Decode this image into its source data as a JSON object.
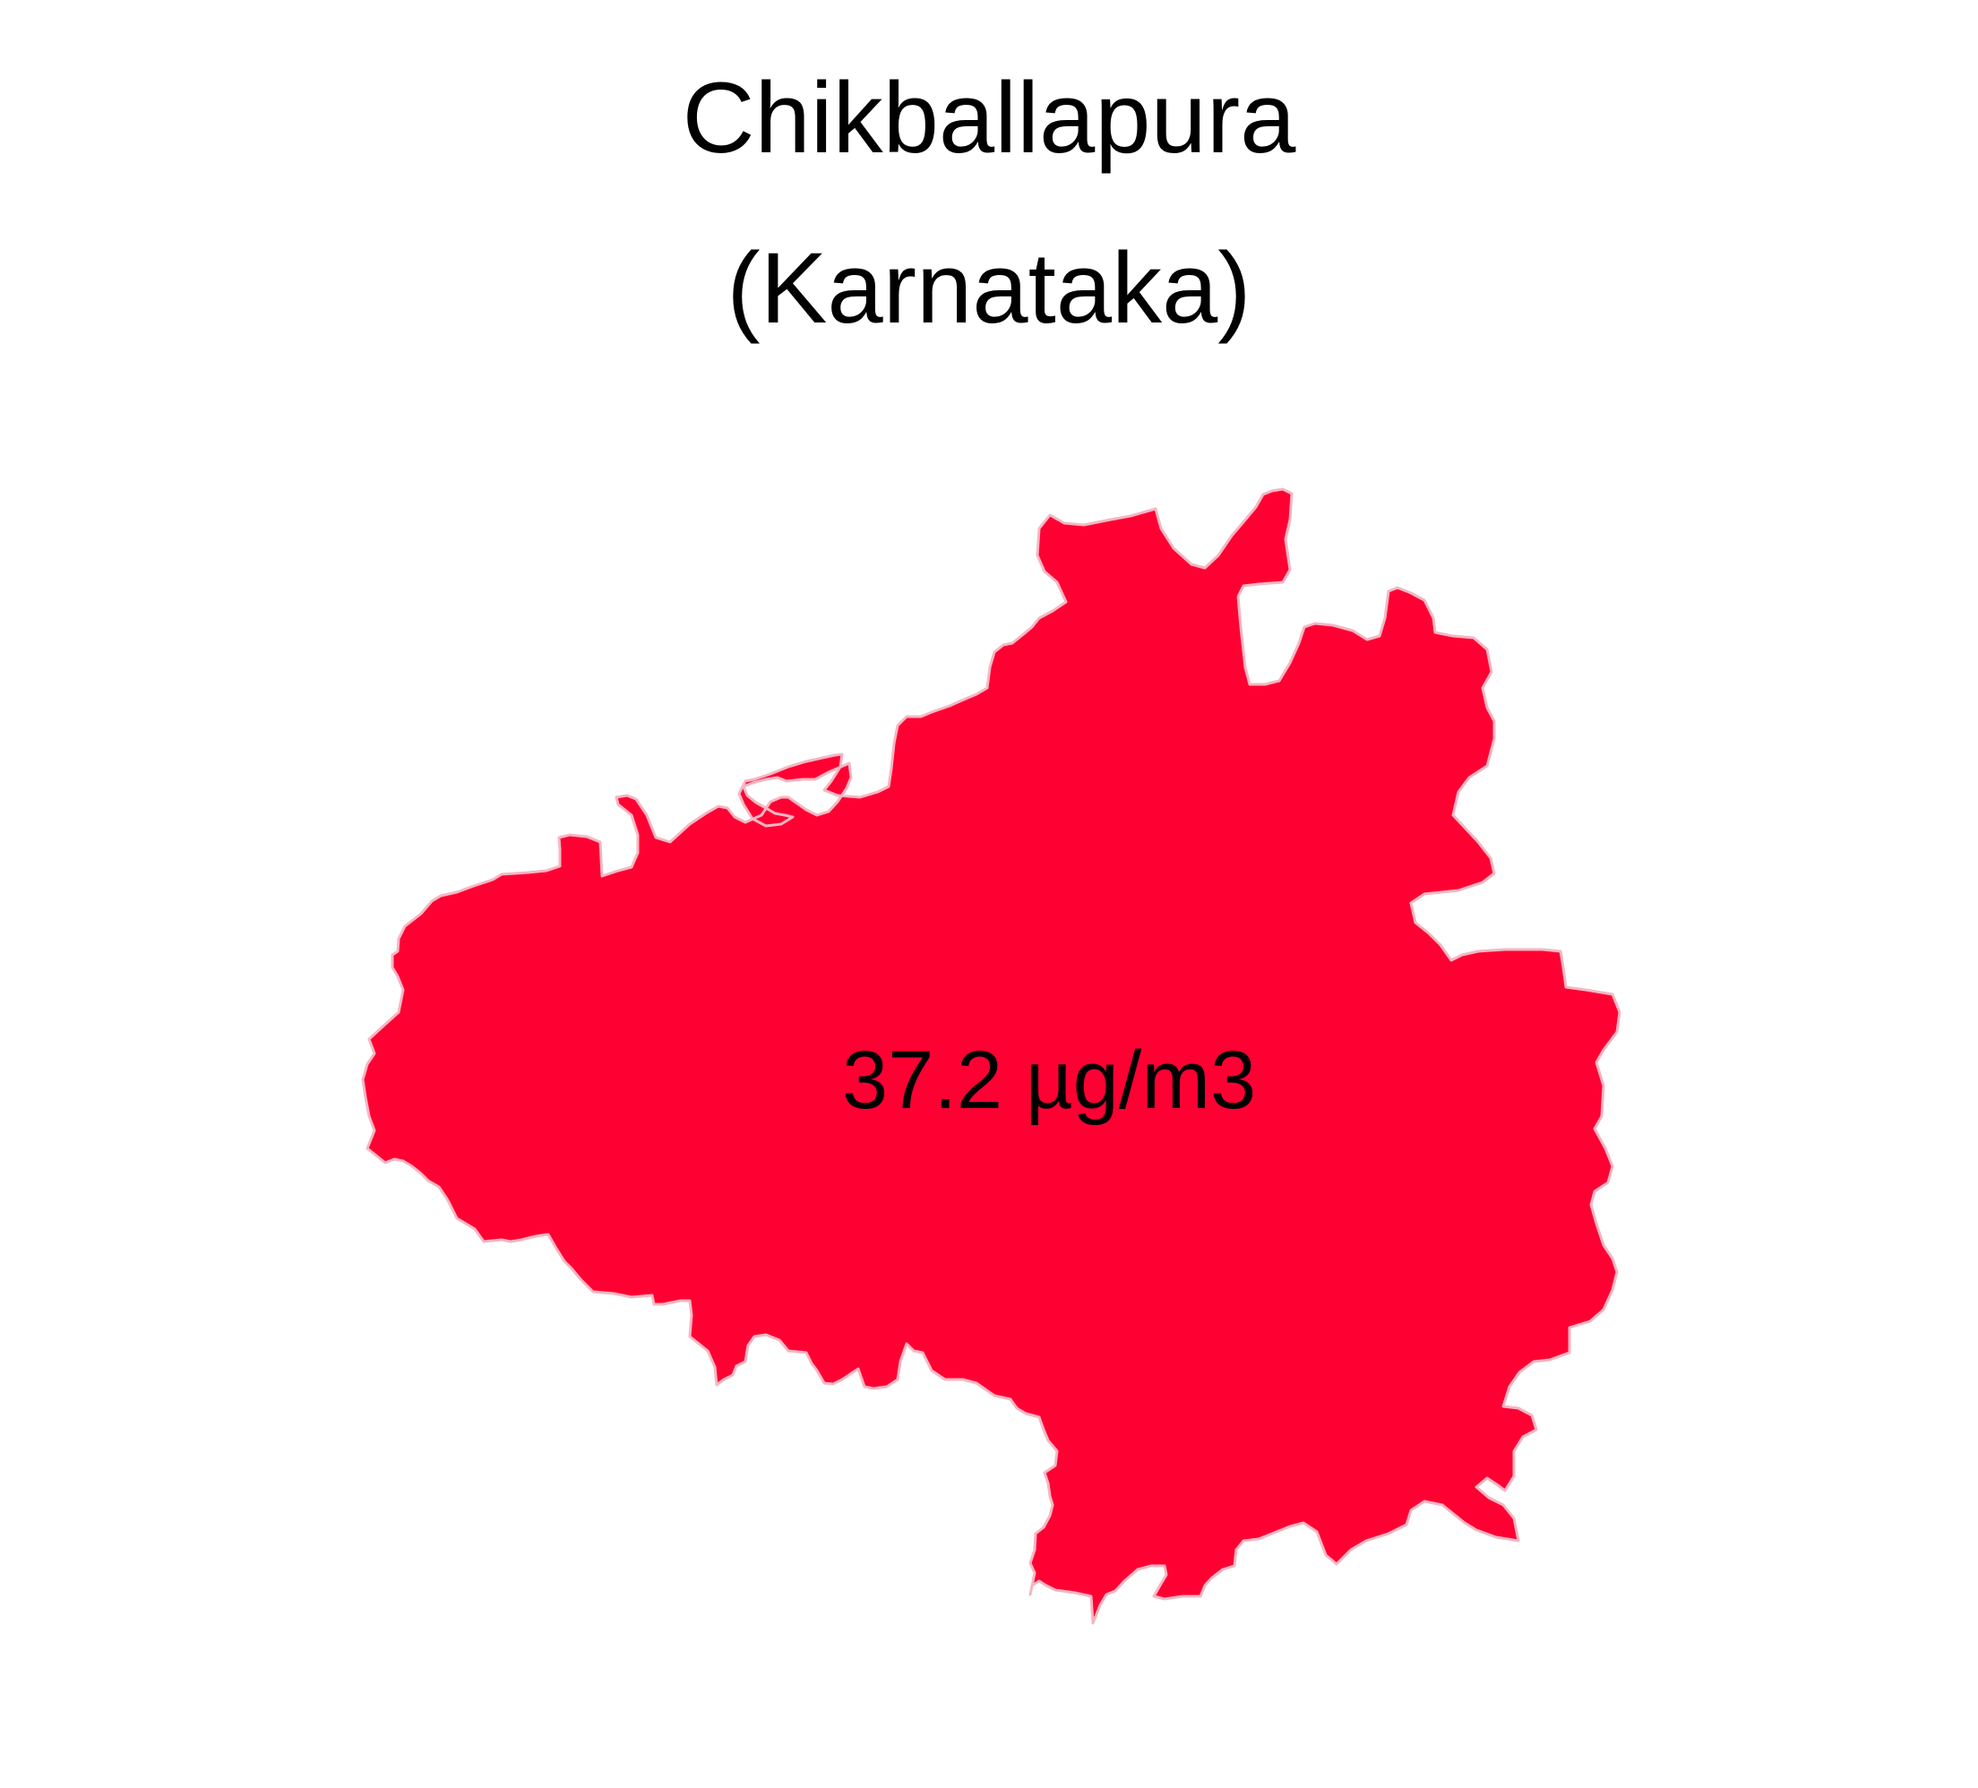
{
  "map": {
    "title_line_1": "Chikballapura",
    "title_line_2": "(Karnataka)",
    "region_name": "Chikballapura",
    "state": "Karnataka",
    "value_label": "37.2 µg/m3",
    "value": 37.2,
    "unit": "µg/m3",
    "fill_color": "#ff0033",
    "border_color": "#f4b6c2"
  }
}
